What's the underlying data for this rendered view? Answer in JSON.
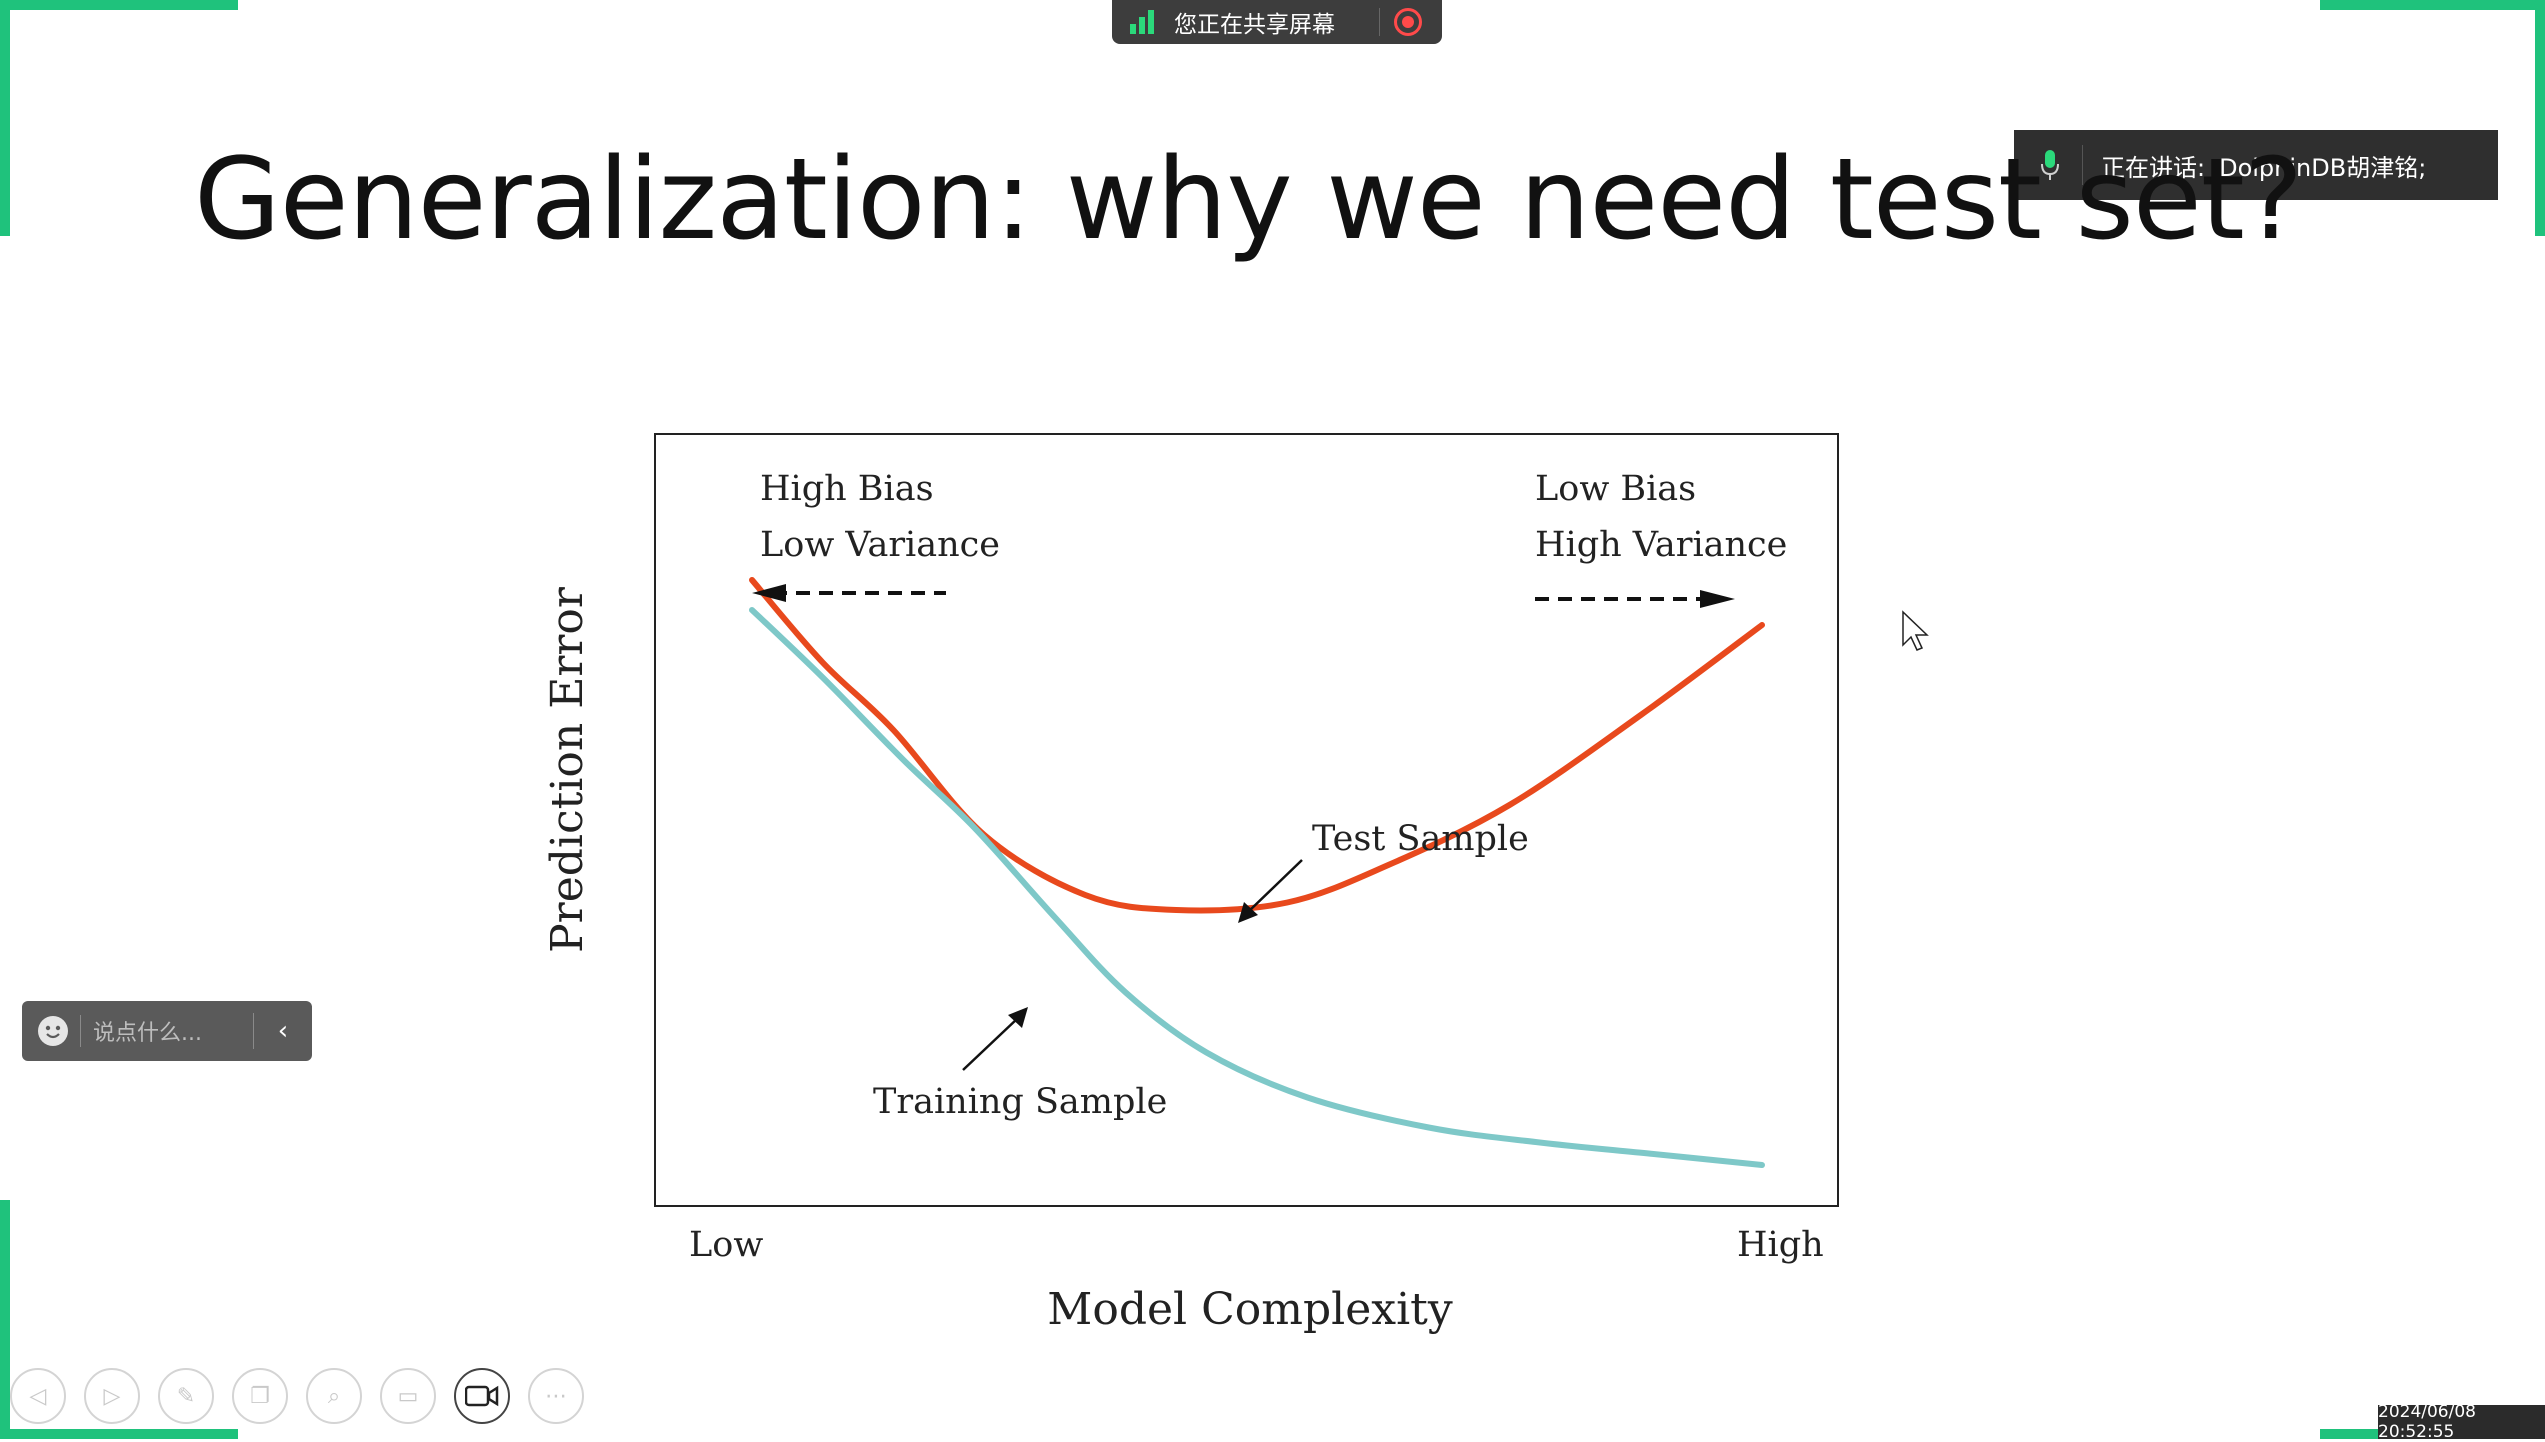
{
  "share_banner": {
    "text": "您正在共享屏幕"
  },
  "speaking": {
    "label": "正在讲话:",
    "name": "DolphinDB胡津铭;"
  },
  "slide": {
    "title": "Generalization: why we need test set?"
  },
  "chart_data": {
    "type": "line",
    "title": "",
    "xlabel": "Model Complexity",
    "ylabel": "Prediction Error",
    "x_tick_labels": [
      "Low",
      "High"
    ],
    "xlim": [
      0,
      1
    ],
    "ylim": [
      0,
      1
    ],
    "annotations": {
      "left_top": "High Bias",
      "left_bottom": "Low Variance",
      "right_top": "Low Bias",
      "right_bottom": "High Variance",
      "test_label": "Test Sample",
      "train_label": "Training Sample"
    },
    "series": [
      {
        "name": "Test Sample",
        "color": "#e8491d",
        "x": [
          0.0,
          0.07,
          0.14,
          0.23,
          0.33,
          0.42,
          0.53,
          0.63,
          0.75,
          0.88,
          1.0
        ],
        "y": [
          0.82,
          0.71,
          0.62,
          0.48,
          0.4,
          0.38,
          0.39,
          0.44,
          0.52,
          0.64,
          0.76
        ]
      },
      {
        "name": "Training Sample",
        "color": "#7ec8c8",
        "x": [
          0.0,
          0.07,
          0.15,
          0.22,
          0.3,
          0.37,
          0.45,
          0.55,
          0.67,
          0.78,
          0.89,
          1.0
        ],
        "y": [
          0.78,
          0.69,
          0.58,
          0.49,
          0.37,
          0.27,
          0.19,
          0.13,
          0.09,
          0.07,
          0.055,
          0.04
        ]
      }
    ]
  },
  "chat": {
    "placeholder": "说点什么..."
  },
  "toolbar": {
    "buttons": [
      "prev-icon",
      "next-icon",
      "pen-icon",
      "copy-icon",
      "zoom-icon",
      "subtitle-icon",
      "camera-icon",
      "more-icon"
    ]
  },
  "timestamp": "2024/06/08 20:52:55",
  "colors": {
    "accent_green": "#1fc27c",
    "test_curve": "#e8491d",
    "train_curve": "#7ec8c8"
  }
}
